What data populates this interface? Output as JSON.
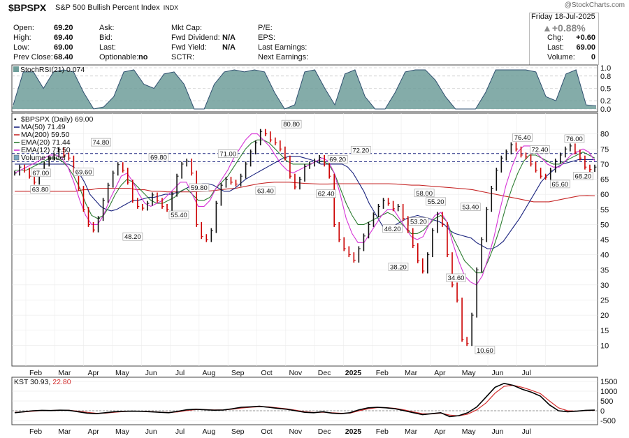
{
  "header": {
    "symbol": "$BPSPX",
    "description": "S&P 500 Bullish Percent Index",
    "exchange": "INDX",
    "watermark": "@StockCharts.com",
    "date": "Friday   18-Jul-2025",
    "change_pct": "▲+0.88%",
    "quote_left": [
      {
        "label": "Open:",
        "value": "69.20"
      },
      {
        "label": "High:",
        "value": "69.40"
      },
      {
        "label": "Low:",
        "value": "69.00"
      },
      {
        "label": "Prev Close:",
        "value": "68.40"
      }
    ],
    "quote_mid1": [
      {
        "label": "Ask:",
        "value": ""
      },
      {
        "label": "Bid:",
        "value": ""
      },
      {
        "label": "Last:",
        "value": ""
      },
      {
        "label": "Optionable:",
        "value": "no"
      }
    ],
    "quote_mid2": [
      {
        "label": "Mkt Cap:",
        "value": ""
      },
      {
        "label": "Fwd Dividend:",
        "value": "N/A"
      },
      {
        "label": "Fwd Yield:",
        "value": "N/A"
      },
      {
        "label": "SCTR:",
        "value": ""
      }
    ],
    "quote_mid3": [
      {
        "label": "P/E:",
        "value": ""
      },
      {
        "label": "EPS:",
        "value": ""
      },
      {
        "label": "Last Earnings:",
        "value": ""
      },
      {
        "label": "Next Earnings:",
        "value": ""
      }
    ],
    "quote_right": [
      {
        "label": "Chg:",
        "value": "+0.60"
      },
      {
        "label": "Last:",
        "value": "69.00"
      },
      {
        "label": "Volume:",
        "value": "0"
      }
    ]
  },
  "colors": {
    "up": "#111111",
    "down": "#cc0000",
    "ma50": "#1a237e",
    "ma200": "#c62828",
    "ema20": "#2e7d32",
    "ema12": "#d633d6",
    "stoch_fill": "#6f9e9a",
    "kst": "#000000",
    "kst_signal": "#d32f2f"
  },
  "chart_data": [
    {
      "type": "line",
      "title": "StochRSI(21) 0.074",
      "ylim": [
        0,
        1
      ],
      "y_ticks": [
        "1.0",
        "0.8",
        "0.5",
        "0.2",
        "0.0"
      ],
      "series": [
        {
          "name": "StochRSI(21)",
          "values": [
            0.1,
            0.9,
            0.9,
            0.5,
            0.9,
            0.95,
            0.9,
            0.4,
            0.0,
            0.05,
            0.3,
            0.9,
            0.95,
            0.6,
            0.5,
            0.85,
            0.9,
            0.6,
            0.0,
            0.0,
            0.6,
            0.9,
            0.95,
            0.9,
            0.95,
            0.9,
            0.4,
            0.0,
            0.1,
            0.9,
            0.95,
            0.5,
            0.1,
            0.85,
            0.95,
            0.3,
            0.0,
            0.0,
            0.4,
            0.9,
            0.95,
            0.95,
            0.7,
            0.3,
            0.0,
            0.0,
            0.0,
            0.4,
            0.95,
            0.95,
            0.95,
            0.95,
            0.9,
            0.3,
            0.2,
            0.85,
            0.95,
            0.1,
            0.074
          ]
        }
      ]
    },
    {
      "type": "line",
      "title": "$BPSPX (Daily) 69.00",
      "ylim": [
        5,
        85
      ],
      "y_ticks": [
        80,
        75,
        70,
        65,
        60,
        55,
        50,
        45,
        40,
        35,
        30,
        25,
        20,
        15,
        10
      ],
      "x_labels": [
        "Feb",
        "Mar",
        "Apr",
        "May",
        "Jun",
        "Jul",
        "Aug",
        "Sep",
        "Oct",
        "Nov",
        "Dec",
        "2025",
        "Feb",
        "Mar",
        "Apr",
        "May",
        "Jun",
        "Jul"
      ],
      "legend": [
        {
          "label": "$BPSPX (Daily) 69.00",
          "key": "up"
        },
        {
          "label": "MA(50) 71.49",
          "key": "ma50"
        },
        {
          "label": "MA(200) 59.50",
          "key": "ma200"
        },
        {
          "label": "EMA(20) 71.44",
          "key": "ema20"
        },
        {
          "label": "EMA(12) 71.50",
          "key": "ema12"
        },
        {
          "label": "Volume undef",
          "key": "vol"
        }
      ],
      "horizontal_lines": [
        73.5,
        70.8
      ],
      "annotations": [
        {
          "text": "63.80",
          "x": 0.5,
          "y": 63.8,
          "pos": "below"
        },
        {
          "text": "67.00",
          "x": 1.0,
          "y": 67.0,
          "pos": "left"
        },
        {
          "text": "69.60",
          "x": 2.0,
          "y": 69.6,
          "pos": "below"
        },
        {
          "text": "74.80",
          "x": 2.6,
          "y": 74.8,
          "pos": "above"
        },
        {
          "text": "48.20",
          "x": 3.7,
          "y": 48.2,
          "pos": "below"
        },
        {
          "text": "69.80",
          "x": 4.6,
          "y": 69.8,
          "pos": "above"
        },
        {
          "text": "55.40",
          "x": 5.3,
          "y": 55.4,
          "pos": "below"
        },
        {
          "text": "59.80",
          "x": 6.0,
          "y": 59.8,
          "pos": "above"
        },
        {
          "text": "71.00",
          "x": 7.0,
          "y": 71.0,
          "pos": "above"
        },
        {
          "text": "63.40",
          "x": 8.3,
          "y": 63.4,
          "pos": "below"
        },
        {
          "text": "80.80",
          "x": 9.2,
          "y": 80.8,
          "pos": "above"
        },
        {
          "text": "62.40",
          "x": 10.4,
          "y": 62.4,
          "pos": "below"
        },
        {
          "text": "69.20",
          "x": 10.8,
          "y": 69.2,
          "pos": "above"
        },
        {
          "text": "72.20",
          "x": 11.6,
          "y": 72.2,
          "pos": "above"
        },
        {
          "text": "46.20",
          "x": 12.7,
          "y": 46.2,
          "pos": "above"
        },
        {
          "text": "38.20",
          "x": 12.9,
          "y": 38.2,
          "pos": "below"
        },
        {
          "text": "53.20",
          "x": 13.6,
          "y": 53.2,
          "pos": "below"
        },
        {
          "text": "58.00",
          "x": 13.8,
          "y": 58.0,
          "pos": "above"
        },
        {
          "text": "55.20",
          "x": 14.2,
          "y": 55.2,
          "pos": "above"
        },
        {
          "text": "34.60",
          "x": 14.9,
          "y": 34.6,
          "pos": "below"
        },
        {
          "text": "53.40",
          "x": 15.4,
          "y": 53.4,
          "pos": "above"
        },
        {
          "text": "10.60",
          "x": 15.9,
          "y": 10.6,
          "pos": "below"
        },
        {
          "text": "76.40",
          "x": 17.2,
          "y": 76.4,
          "pos": "above"
        },
        {
          "text": "72.40",
          "x": 17.8,
          "y": 72.4,
          "pos": "above"
        },
        {
          "text": "65.60",
          "x": 18.5,
          "y": 65.6,
          "pos": "below"
        },
        {
          "text": "76.00",
          "x": 19.0,
          "y": 76.0,
          "pos": "above"
        },
        {
          "text": "68.20",
          "x": 19.3,
          "y": 68.2,
          "pos": "below"
        }
      ],
      "price": [
        67,
        69,
        68,
        66,
        64,
        67,
        70,
        72,
        73,
        74.8,
        73,
        72,
        68,
        62,
        55,
        50,
        48.2,
        52,
        58,
        63,
        67,
        69.8,
        68,
        64,
        58,
        56,
        55.4,
        57,
        59.8,
        58,
        56,
        55,
        60,
        66,
        70,
        71,
        67,
        50,
        46,
        45,
        48,
        57,
        63,
        65,
        64,
        63.4,
        66,
        70,
        74,
        77,
        80.8,
        80,
        78,
        77,
        75,
        72,
        66,
        62.4,
        65,
        69.2,
        70,
        71,
        72.2,
        70,
        66,
        50,
        45,
        42,
        40,
        38.2,
        42,
        46.2,
        50,
        53.2,
        56,
        58,
        57,
        55.2,
        56,
        52,
        48,
        43,
        38,
        34.6,
        40,
        48,
        53.4,
        50,
        40,
        30,
        25,
        12,
        10.6,
        20,
        35,
        45,
        55,
        62,
        68,
        72,
        74,
        76.4,
        75,
        73,
        72.4,
        70,
        68,
        66,
        65.6,
        68,
        71,
        73,
        75,
        76,
        74,
        72,
        69,
        68.2,
        69
      ],
      "ma50": [
        70,
        70,
        70,
        70,
        70,
        70,
        70,
        70,
        70,
        70,
        70,
        69,
        67,
        64,
        60,
        58,
        56,
        55,
        54.5,
        55,
        56,
        57,
        58,
        58,
        58.5,
        59,
        59,
        59.5,
        60,
        60,
        60.5,
        61,
        62,
        63,
        63,
        63.5,
        63.5,
        63,
        62,
        61,
        61,
        62,
        63.5,
        65,
        66,
        67,
        68,
        69,
        70,
        71,
        72,
        72.5,
        72.5,
        72.5,
        72,
        71.5,
        71,
        70,
        70,
        70,
        70,
        70,
        69,
        67,
        64,
        61,
        57,
        54,
        51,
        48,
        49,
        50,
        51,
        52,
        52.5,
        53,
        52.5,
        52,
        51.5,
        51,
        50,
        48,
        47,
        46.5,
        46,
        45.5,
        44,
        43,
        42,
        42,
        43,
        44.5,
        47,
        49.5,
        52,
        55,
        58,
        61,
        64,
        66,
        67.5,
        69,
        70,
        70.5,
        71,
        71.5,
        71.5,
        71.5,
        71.5
      ],
      "ma200": [
        61,
        61,
        61,
        61,
        61,
        61,
        61,
        61,
        61,
        61.5,
        61.5,
        62,
        62,
        62,
        62,
        62,
        61.5,
        61.5,
        61,
        61,
        60.8,
        60.8,
        60.8,
        60.8,
        60.9,
        61,
        61.2,
        61.5,
        61.8,
        62,
        62.5,
        63,
        63.5,
        63.8,
        64,
        64,
        64,
        63.8,
        63.6,
        63.5,
        63.4,
        63.4,
        63.5,
        63.5,
        63.5,
        63.5,
        63.5,
        63.5,
        63.5,
        63.5,
        63.4,
        63.2,
        63,
        63,
        62.8,
        62.6,
        62.4,
        62.2,
        62,
        61.8,
        61.5,
        61,
        60.5,
        60,
        59.5,
        59,
        58.5,
        58,
        57.5,
        57.5,
        57.5,
        58,
        58.5,
        59,
        59.5,
        59.6,
        59.5
      ],
      "ema20": [
        68,
        68,
        68,
        69,
        70,
        71,
        72,
        72,
        71,
        69,
        66,
        62,
        57,
        53,
        52,
        53,
        56,
        60,
        63,
        65,
        64,
        62,
        60,
        58,
        57,
        57,
        58,
        59,
        61,
        62,
        60,
        58,
        58,
        59,
        62,
        64,
        66,
        69,
        72,
        75,
        77,
        78,
        78,
        77,
        75,
        73,
        71,
        70,
        70,
        70,
        70,
        71,
        71,
        70,
        67,
        62,
        57,
        53,
        50,
        50,
        51,
        52,
        53,
        54,
        53,
        51,
        49,
        47,
        47,
        48,
        50,
        52,
        53,
        51,
        46,
        42,
        38,
        36,
        34,
        34,
        38,
        43,
        49,
        56,
        62,
        67,
        71,
        73,
        73,
        72,
        71,
        70,
        70,
        71,
        72,
        73,
        74,
        73,
        72
      ],
      "ema12": [
        67,
        68,
        69,
        70,
        71,
        72,
        73,
        73,
        72,
        69,
        64,
        58,
        53,
        50,
        50,
        53,
        58,
        62,
        66,
        67,
        64,
        60,
        57,
        56,
        57,
        58,
        60,
        62,
        64,
        64,
        60,
        56,
        56,
        58,
        62,
        65,
        68,
        72,
        75,
        78,
        80,
        80,
        78,
        76,
        73,
        70,
        68,
        67,
        68,
        69,
        70,
        71,
        72,
        71,
        67,
        60,
        52,
        47,
        44,
        44,
        47,
        50,
        53,
        55,
        55,
        52,
        49,
        46,
        45,
        46,
        50,
        53,
        54,
        51,
        44,
        38,
        33,
        31,
        30,
        33,
        39,
        46,
        55,
        63,
        69,
        74,
        76,
        76,
        74,
        72,
        70,
        69,
        69,
        71,
        73,
        74,
        75,
        74,
        71
      ]
    },
    {
      "type": "line",
      "title": "KST 30.93, 22.80",
      "ylim": [
        -500,
        1500
      ],
      "y_ticks": [
        "1500",
        "1000",
        "500",
        "0",
        "-500"
      ],
      "series": [
        {
          "name": "KST",
          "value": "30.93",
          "values": [
            -100,
            -50,
            0,
            20,
            10,
            30,
            20,
            -50,
            -120,
            -150,
            -100,
            -50,
            -30,
            -20,
            -30,
            -50,
            -80,
            -100,
            -30,
            50,
            80,
            50,
            30,
            40,
            100,
            180,
            200,
            230,
            180,
            120,
            80,
            0,
            -80,
            -100,
            -50,
            -120,
            -150,
            -100,
            50,
            150,
            180,
            150,
            100,
            0,
            -100,
            -200,
            -150,
            -100,
            -300,
            -250,
            -100,
            200,
            700,
            1200,
            1400,
            1300,
            1100,
            950,
            750,
            300,
            0,
            -50,
            -20,
            20,
            31
          ]
        },
        {
          "name": "signal",
          "value": "22.80",
          "values": [
            -80,
            -60,
            -20,
            10,
            15,
            20,
            20,
            -20,
            -80,
            -130,
            -120,
            -80,
            -40,
            -25,
            -25,
            -40,
            -70,
            -90,
            -60,
            10,
            60,
            60,
            40,
            40,
            80,
            140,
            180,
            210,
            200,
            150,
            100,
            30,
            -50,
            -90,
            -70,
            -100,
            -130,
            -120,
            0,
            100,
            160,
            160,
            120,
            40,
            -60,
            -150,
            -160,
            -120,
            -220,
            -260,
            -170,
            50,
            400,
            900,
            1250,
            1300,
            1200,
            1050,
            880,
            500,
            150,
            0,
            -20,
            10,
            23
          ]
        }
      ],
      "x_labels": [
        "Feb",
        "Mar",
        "Apr",
        "May",
        "Jun",
        "Jul",
        "Aug",
        "Sep",
        "Oct",
        "Nov",
        "Dec",
        "2025",
        "Feb",
        "Mar",
        "Apr",
        "May",
        "Jun",
        "Jul"
      ]
    }
  ]
}
